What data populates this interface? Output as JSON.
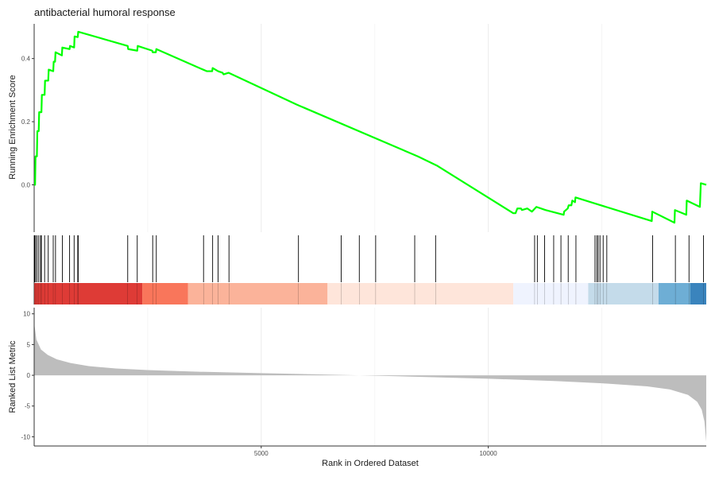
{
  "chart_data": {
    "type": "line",
    "title": "antibacterial humoral response",
    "xlabel": "Rank in Ordered Dataset",
    "x_ticks": [
      5000,
      10000
    ],
    "xlim": [
      0,
      14800
    ],
    "grid": "vertical",
    "enrichment_panel": {
      "ylabel": "Running Enrichment Score",
      "y_ticks": [
        0.0,
        0.2,
        0.4
      ],
      "ylim": [
        -0.15,
        0.51
      ],
      "line_color": "#00ff00",
      "points": [
        [
          0,
          0.0
        ],
        [
          20,
          0.0
        ],
        [
          30,
          0.09
        ],
        [
          60,
          0.09
        ],
        [
          70,
          0.17
        ],
        [
          100,
          0.17
        ],
        [
          110,
          0.23
        ],
        [
          160,
          0.23
        ],
        [
          170,
          0.285
        ],
        [
          230,
          0.285
        ],
        [
          240,
          0.33
        ],
        [
          310,
          0.33
        ],
        [
          320,
          0.365
        ],
        [
          420,
          0.36
        ],
        [
          430,
          0.39
        ],
        [
          460,
          0.39
        ],
        [
          470,
          0.42
        ],
        [
          610,
          0.41
        ],
        [
          620,
          0.435
        ],
        [
          780,
          0.43
        ],
        [
          790,
          0.44
        ],
        [
          880,
          0.435
        ],
        [
          890,
          0.47
        ],
        [
          960,
          0.468
        ],
        [
          970,
          0.485
        ],
        [
          2060,
          0.44
        ],
        [
          2070,
          0.43
        ],
        [
          2270,
          0.425
        ],
        [
          2280,
          0.44
        ],
        [
          2600,
          0.425
        ],
        [
          2610,
          0.42
        ],
        [
          2680,
          0.42
        ],
        [
          2690,
          0.43
        ],
        [
          3720,
          0.365
        ],
        [
          3800,
          0.36
        ],
        [
          3920,
          0.36
        ],
        [
          3930,
          0.37
        ],
        [
          4050,
          0.36
        ],
        [
          4150,
          0.355
        ],
        [
          4170,
          0.35
        ],
        [
          4280,
          0.355
        ],
        [
          5770,
          0.255
        ],
        [
          5850,
          0.25
        ],
        [
          8450,
          0.09
        ],
        [
          8880,
          0.06
        ],
        [
          10550,
          -0.09
        ],
        [
          10600,
          -0.09
        ],
        [
          10640,
          -0.075
        ],
        [
          10720,
          -0.075
        ],
        [
          10740,
          -0.08
        ],
        [
          10860,
          -0.075
        ],
        [
          10960,
          -0.085
        ],
        [
          11060,
          -0.07
        ],
        [
          11260,
          -0.08
        ],
        [
          11660,
          -0.095
        ],
        [
          11670,
          -0.085
        ],
        [
          11750,
          -0.075
        ],
        [
          11770,
          -0.065
        ],
        [
          11830,
          -0.065
        ],
        [
          11850,
          -0.05
        ],
        [
          11910,
          -0.055
        ],
        [
          11920,
          -0.04
        ],
        [
          13600,
          -0.115
        ],
        [
          13610,
          -0.085
        ],
        [
          14100,
          -0.12
        ],
        [
          14110,
          -0.08
        ],
        [
          14360,
          -0.095
        ],
        [
          14370,
          -0.05
        ],
        [
          14660,
          -0.07
        ],
        [
          14680,
          0.005
        ],
        [
          14800,
          0.0
        ]
      ]
    },
    "hits_panel": {
      "ranks": [
        10,
        30,
        60,
        100,
        140,
        160,
        230,
        310,
        420,
        470,
        620,
        780,
        880,
        960,
        970,
        2060,
        2270,
        2610,
        2690,
        3730,
        3930,
        4050,
        4290,
        5820,
        6760,
        7160,
        7520,
        8380,
        8840,
        11020,
        11080,
        11240,
        11440,
        11600,
        11760,
        11930,
        12350,
        12390,
        12420,
        12460,
        12530,
        12610,
        13620,
        14120,
        14420,
        14740
      ],
      "color_bands": [
        {
          "from": 0,
          "to": 2380,
          "color": "#de3b36"
        },
        {
          "from": 2380,
          "to": 3390,
          "color": "#f9765b"
        },
        {
          "from": 3390,
          "to": 6460,
          "color": "#fbb39a"
        },
        {
          "from": 6460,
          "to": 10550,
          "color": "#fee5da"
        },
        {
          "from": 10550,
          "to": 12200,
          "color": "#eff3fe"
        },
        {
          "from": 12200,
          "to": 13750,
          "color": "#c4dbea"
        },
        {
          "from": 13750,
          "to": 14450,
          "color": "#6eaed5"
        },
        {
          "from": 14450,
          "to": 14800,
          "color": "#3a84bd"
        }
      ]
    },
    "ranked_metric_panel": {
      "ylabel": "Ranked List Metric",
      "y_ticks": [
        10,
        5,
        0,
        -5,
        -10
      ],
      "ylim": [
        -11.5,
        11
      ],
      "fill_color": "#bdbdbd",
      "points": [
        [
          0,
          8.5
        ],
        [
          50,
          5.8
        ],
        [
          150,
          4.2
        ],
        [
          300,
          3.3
        ],
        [
          500,
          2.6
        ],
        [
          800,
          2.0
        ],
        [
          1200,
          1.5
        ],
        [
          1800,
          1.1
        ],
        [
          2500,
          0.85
        ],
        [
          3500,
          0.6
        ],
        [
          5000,
          0.35
        ],
        [
          6500,
          0.1
        ],
        [
          8000,
          -0.15
        ],
        [
          10000,
          -0.55
        ],
        [
          11500,
          -0.95
        ],
        [
          12500,
          -1.3
        ],
        [
          13500,
          -1.8
        ],
        [
          14000,
          -2.3
        ],
        [
          14400,
          -3.2
        ],
        [
          14600,
          -4.3
        ],
        [
          14700,
          -5.6
        ],
        [
          14760,
          -7.5
        ],
        [
          14800,
          -10.8
        ]
      ]
    }
  }
}
